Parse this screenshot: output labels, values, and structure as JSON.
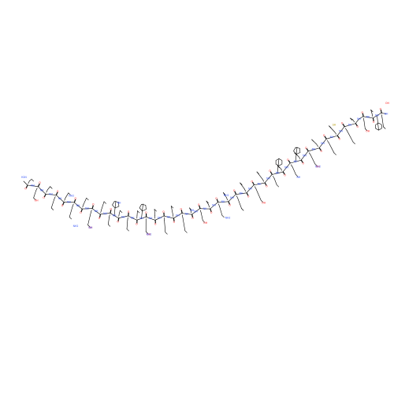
{
  "figure": {
    "kind": "skeletal-formula",
    "background": "#ffffff",
    "bond_color": "#000000",
    "atom_colors": {
      "O": "#ff0d0d",
      "N": "#3050f8"
    }
  },
  "atom_labels": {
    "oxygen": "O",
    "nitrogen": "N",
    "nh": "NH",
    "nh2": "NH2",
    "oh": "OH",
    "sh": "SH",
    "h2n": "H2N"
  }
}
